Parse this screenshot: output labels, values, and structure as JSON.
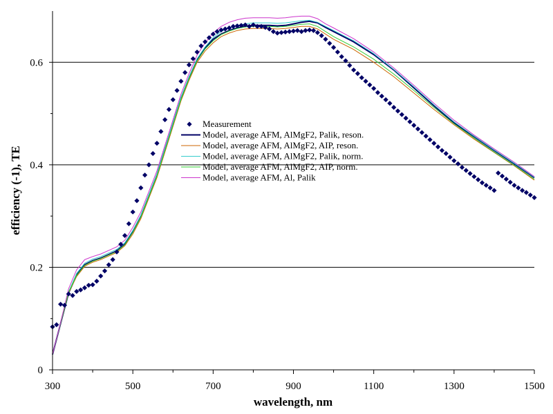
{
  "chart_data": {
    "type": "line",
    "title": "",
    "xlabel": "wavelength, nm",
    "ylabel": "efficiency (-1), TE",
    "xlim": [
      300,
      1500
    ],
    "ylim": [
      0,
      0.7
    ],
    "x_ticks": [
      300,
      500,
      700,
      900,
      1100,
      1300,
      1500
    ],
    "x_tick_labels": [
      "300",
      "500",
      "700",
      "900",
      "1100",
      "1300",
      "1500"
    ],
    "y_ticks": [
      0,
      0.2,
      0.4,
      0.6
    ],
    "y_tick_labels": [
      "0",
      "0.2",
      "0.4",
      "0.6"
    ],
    "grid": "horizontal",
    "legend_position": "center",
    "series": [
      {
        "name": "Measurement",
        "style": "markers",
        "color": "#000066",
        "x": [
          300,
          310,
          320,
          330,
          340,
          350,
          360,
          370,
          380,
          390,
          400,
          410,
          420,
          430,
          440,
          450,
          460,
          470,
          480,
          490,
          500,
          510,
          520,
          530,
          540,
          550,
          560,
          570,
          580,
          590,
          600,
          610,
          620,
          630,
          640,
          650,
          660,
          670,
          680,
          690,
          700,
          710,
          720,
          730,
          740,
          750,
          760,
          770,
          780,
          790,
          800,
          810,
          820,
          830,
          840,
          850,
          860,
          870,
          880,
          890,
          900,
          910,
          920,
          930,
          940,
          950,
          960,
          970,
          980,
          990,
          1000,
          1010,
          1020,
          1030,
          1040,
          1050,
          1060,
          1070,
          1080,
          1090,
          1100,
          1110,
          1120,
          1130,
          1140,
          1150,
          1160,
          1170,
          1180,
          1190,
          1200,
          1210,
          1220,
          1230,
          1240,
          1250,
          1260,
          1270,
          1280,
          1290,
          1300,
          1310,
          1320,
          1330,
          1340,
          1350,
          1360,
          1370,
          1380,
          1390,
          1400,
          1410,
          1420,
          1430,
          1440,
          1450,
          1460,
          1470,
          1480,
          1490,
          1500
        ],
        "y": [
          0.084,
          0.088,
          0.128,
          0.126,
          0.148,
          0.145,
          0.153,
          0.156,
          0.16,
          0.165,
          0.166,
          0.173,
          0.183,
          0.193,
          0.205,
          0.215,
          0.23,
          0.245,
          0.262,
          0.285,
          0.308,
          0.33,
          0.355,
          0.38,
          0.4,
          0.422,
          0.442,
          0.465,
          0.488,
          0.508,
          0.527,
          0.545,
          0.563,
          0.58,
          0.595,
          0.607,
          0.62,
          0.632,
          0.64,
          0.648,
          0.655,
          0.66,
          0.663,
          0.665,
          0.667,
          0.67,
          0.671,
          0.672,
          0.673,
          0.67,
          0.673,
          0.67,
          0.67,
          0.668,
          0.665,
          0.66,
          0.657,
          0.658,
          0.659,
          0.66,
          0.661,
          0.662,
          0.66,
          0.662,
          0.663,
          0.662,
          0.658,
          0.652,
          0.645,
          0.637,
          0.629,
          0.62,
          0.611,
          0.603,
          0.594,
          0.585,
          0.578,
          0.57,
          0.563,
          0.556,
          0.549,
          0.541,
          0.534,
          0.527,
          0.52,
          0.512,
          0.505,
          0.498,
          0.491,
          0.484,
          0.477,
          0.47,
          0.463,
          0.456,
          0.449,
          0.442,
          0.435,
          0.428,
          0.422,
          0.415,
          0.408,
          0.402,
          0.395,
          0.389,
          0.383,
          0.377,
          0.371,
          0.365,
          0.36,
          0.355,
          0.35,
          0.384,
          0.378,
          0.372,
          0.366,
          0.36,
          0.355,
          0.35,
          0.346,
          0.341,
          0.336
        ]
      },
      {
        "name": "Model, average AFM, AlMgF2, Palik, reson.",
        "style": "line",
        "color": "#000066",
        "x": [
          300,
          320,
          340,
          360,
          380,
          400,
          420,
          440,
          460,
          480,
          500,
          520,
          540,
          560,
          580,
          600,
          620,
          640,
          660,
          680,
          700,
          720,
          740,
          760,
          780,
          800,
          820,
          840,
          860,
          880,
          900,
          920,
          940,
          960,
          980,
          1000,
          1050,
          1100,
          1150,
          1200,
          1250,
          1300,
          1350,
          1400,
          1450,
          1500
        ],
        "y": [
          0.03,
          0.09,
          0.15,
          0.185,
          0.205,
          0.213,
          0.218,
          0.225,
          0.232,
          0.245,
          0.27,
          0.3,
          0.34,
          0.38,
          0.43,
          0.48,
          0.53,
          0.57,
          0.605,
          0.628,
          0.645,
          0.655,
          0.662,
          0.667,
          0.67,
          0.672,
          0.672,
          0.672,
          0.671,
          0.672,
          0.675,
          0.678,
          0.68,
          0.677,
          0.668,
          0.66,
          0.64,
          0.615,
          0.585,
          0.55,
          0.515,
          0.482,
          0.455,
          0.428,
          0.402,
          0.375
        ]
      },
      {
        "name": "Model, average AFM, AlMgF2, AIP, reson.",
        "style": "line",
        "color": "#cc6600",
        "x": [
          300,
          320,
          340,
          360,
          380,
          400,
          420,
          440,
          460,
          480,
          500,
          520,
          540,
          560,
          580,
          600,
          620,
          640,
          660,
          680,
          700,
          720,
          740,
          760,
          780,
          800,
          820,
          840,
          860,
          880,
          900,
          920,
          940,
          960,
          980,
          1000,
          1050,
          1100,
          1150,
          1200,
          1250,
          1300,
          1350,
          1400,
          1450,
          1500
        ],
        "y": [
          0.03,
          0.09,
          0.15,
          0.182,
          0.202,
          0.21,
          0.215,
          0.222,
          0.229,
          0.242,
          0.265,
          0.295,
          0.335,
          0.375,
          0.425,
          0.475,
          0.525,
          0.565,
          0.6,
          0.622,
          0.638,
          0.65,
          0.657,
          0.662,
          0.665,
          0.666,
          0.666,
          0.666,
          0.665,
          0.666,
          0.668,
          0.67,
          0.67,
          0.665,
          0.655,
          0.645,
          0.625,
          0.6,
          0.572,
          0.54,
          0.508,
          0.478,
          0.45,
          0.424,
          0.398,
          0.37
        ]
      },
      {
        "name": "Model, average AFM, AlMgF2, Palik, norm.",
        "style": "line",
        "color": "#33cccc",
        "x": [
          300,
          320,
          340,
          360,
          380,
          400,
          420,
          440,
          460,
          480,
          500,
          520,
          540,
          560,
          580,
          600,
          620,
          640,
          660,
          680,
          700,
          720,
          740,
          760,
          780,
          800,
          820,
          840,
          860,
          880,
          900,
          920,
          940,
          960,
          980,
          1000,
          1050,
          1100,
          1150,
          1200,
          1250,
          1300,
          1350,
          1400,
          1450,
          1500
        ],
        "y": [
          0.03,
          0.09,
          0.152,
          0.188,
          0.208,
          0.216,
          0.221,
          0.228,
          0.235,
          0.248,
          0.272,
          0.302,
          0.342,
          0.382,
          0.432,
          0.482,
          0.532,
          0.572,
          0.607,
          0.63,
          0.648,
          0.66,
          0.667,
          0.672,
          0.675,
          0.677,
          0.677,
          0.677,
          0.676,
          0.677,
          0.679,
          0.681,
          0.682,
          0.678,
          0.67,
          0.662,
          0.642,
          0.617,
          0.586,
          0.552,
          0.517,
          0.484,
          0.456,
          0.429,
          0.403,
          0.376
        ]
      },
      {
        "name": "Model, average AFM, AlMgF2, AIP, norm.",
        "style": "line",
        "color": "#33cc33",
        "x": [
          300,
          320,
          340,
          360,
          380,
          400,
          420,
          440,
          460,
          480,
          500,
          520,
          540,
          560,
          580,
          600,
          620,
          640,
          660,
          680,
          700,
          720,
          740,
          760,
          780,
          800,
          820,
          840,
          860,
          880,
          900,
          920,
          940,
          960,
          980,
          1000,
          1050,
          1100,
          1150,
          1200,
          1250,
          1300,
          1350,
          1400,
          1450,
          1500
        ],
        "y": [
          0.03,
          0.09,
          0.151,
          0.184,
          0.204,
          0.212,
          0.217,
          0.224,
          0.231,
          0.244,
          0.268,
          0.298,
          0.338,
          0.378,
          0.428,
          0.478,
          0.528,
          0.568,
          0.603,
          0.626,
          0.642,
          0.654,
          0.661,
          0.666,
          0.669,
          0.67,
          0.67,
          0.67,
          0.669,
          0.67,
          0.672,
          0.674,
          0.675,
          0.67,
          0.66,
          0.65,
          0.63,
          0.606,
          0.577,
          0.545,
          0.512,
          0.48,
          0.452,
          0.425,
          0.399,
          0.372
        ]
      },
      {
        "name": "Model, average AFM, Al, Palik",
        "style": "line",
        "color": "#cc33cc",
        "x": [
          300,
          320,
          340,
          360,
          380,
          400,
          420,
          440,
          460,
          480,
          500,
          520,
          540,
          560,
          580,
          600,
          620,
          640,
          660,
          680,
          700,
          720,
          740,
          760,
          780,
          800,
          820,
          840,
          860,
          880,
          900,
          920,
          940,
          960,
          980,
          1000,
          1050,
          1100,
          1150,
          1200,
          1250,
          1300,
          1350,
          1400,
          1450,
          1500
        ],
        "y": [
          0.03,
          0.092,
          0.158,
          0.195,
          0.215,
          0.221,
          0.226,
          0.233,
          0.24,
          0.253,
          0.278,
          0.308,
          0.348,
          0.388,
          0.438,
          0.488,
          0.538,
          0.578,
          0.614,
          0.638,
          0.657,
          0.67,
          0.678,
          0.683,
          0.686,
          0.687,
          0.687,
          0.687,
          0.686,
          0.687,
          0.689,
          0.69,
          0.69,
          0.685,
          0.675,
          0.667,
          0.646,
          0.62,
          0.589,
          0.555,
          0.52,
          0.487,
          0.458,
          0.431,
          0.405,
          0.377
        ]
      }
    ]
  }
}
